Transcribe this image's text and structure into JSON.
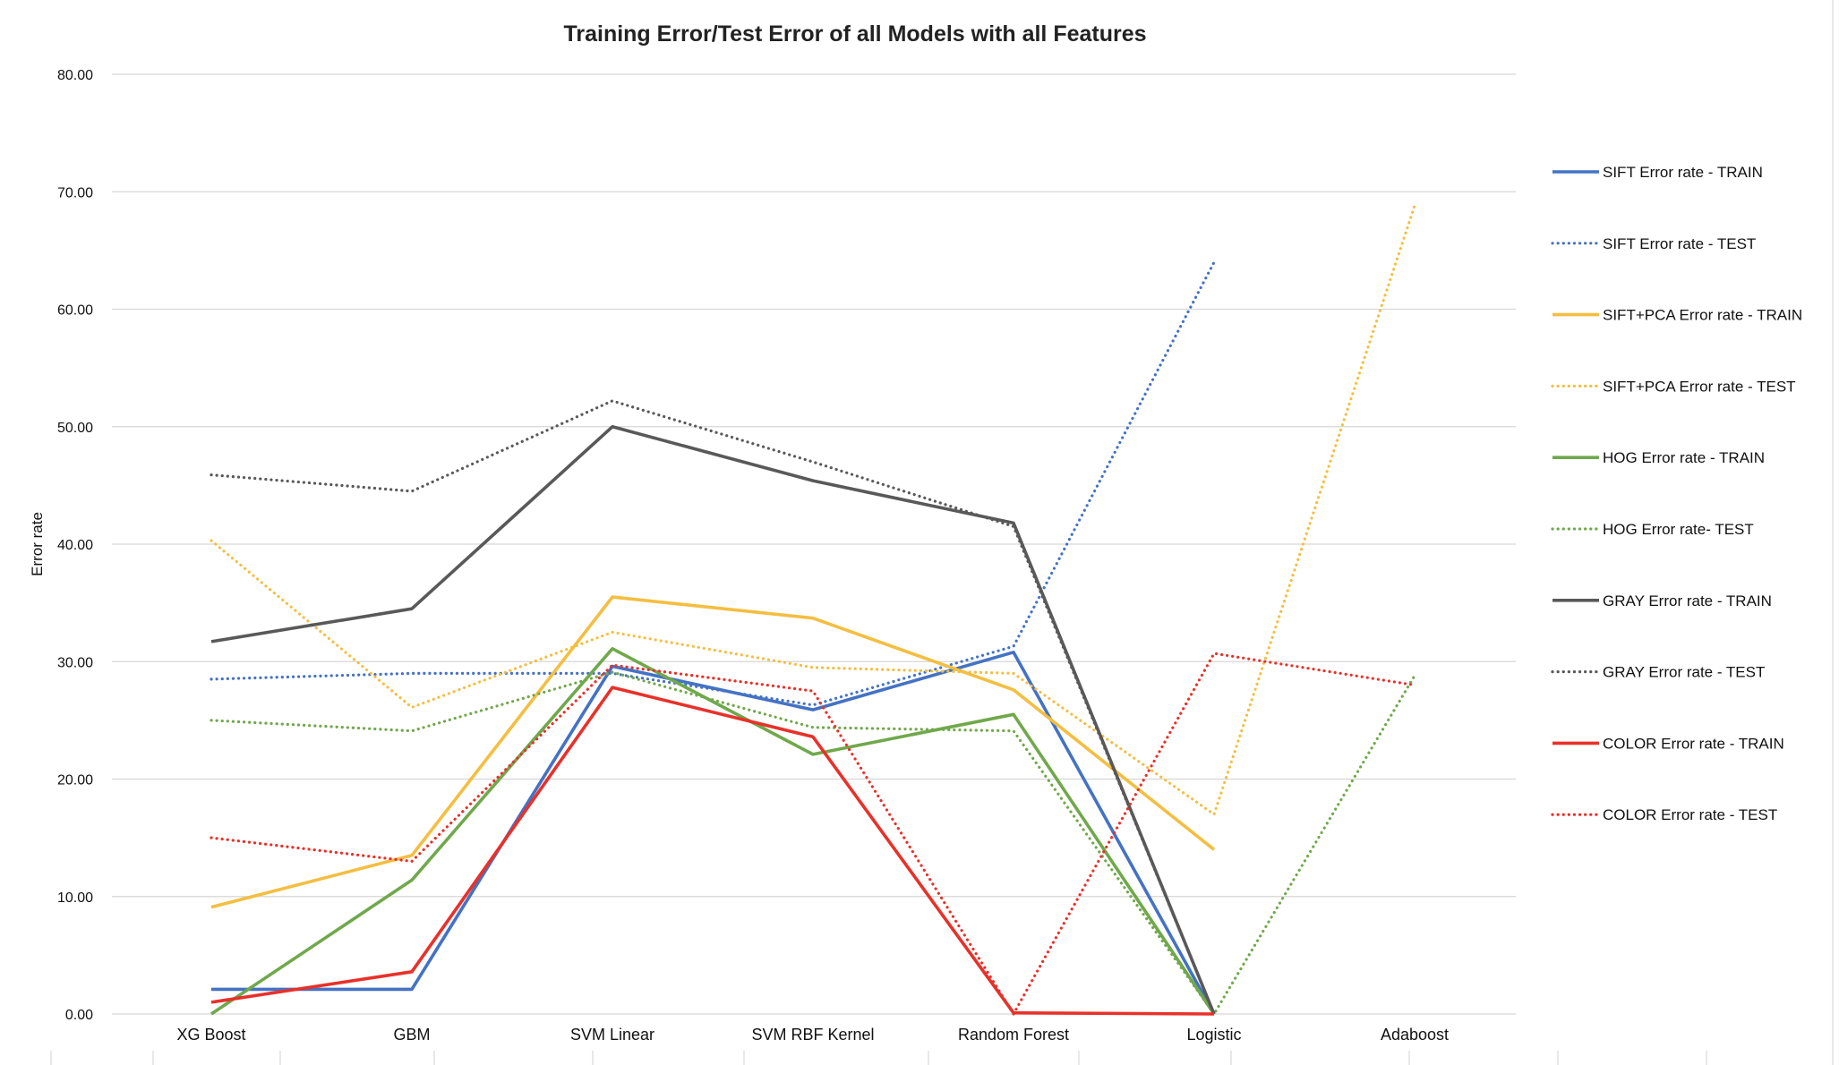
{
  "chart_data": {
    "type": "line",
    "title": "Training Error/Test Error of all Models with all Features",
    "xlabel": "",
    "ylabel": "Error rate",
    "ylim": [
      0,
      80
    ],
    "y_ticks": [
      "0.00",
      "10.00",
      "20.00",
      "30.00",
      "40.00",
      "50.00",
      "60.00",
      "70.00",
      "80.00"
    ],
    "categories": [
      "XG Boost",
      "GBM",
      "SVM Linear",
      "SVM RBF Kernel",
      "Random Forest",
      "Logistic",
      "Adaboost"
    ],
    "grid": true,
    "legend_position": "right",
    "series": [
      {
        "name": "SIFT Error rate - TRAIN",
        "color": "#4472C4",
        "style": "solid",
        "values": [
          2.1,
          2.1,
          29.6,
          25.9,
          30.8,
          0.0,
          null
        ]
      },
      {
        "name": "SIFT Error rate - TEST",
        "color": "#4472C4",
        "style": "dotted",
        "values": [
          28.5,
          29.0,
          29.0,
          26.3,
          31.3,
          64.0,
          null
        ]
      },
      {
        "name": "SIFT+PCA Error rate - TRAIN",
        "color": "#F4BE41",
        "style": "solid",
        "values": [
          9.1,
          13.5,
          35.5,
          33.7,
          27.6,
          14.0,
          null
        ]
      },
      {
        "name": "SIFT+PCA Error rate - TEST",
        "color": "#F4BE41",
        "style": "dotted",
        "values": [
          40.3,
          26.1,
          32.5,
          29.5,
          29.0,
          17.0,
          68.8
        ]
      },
      {
        "name": "HOG Error rate - TRAIN",
        "color": "#70A84B",
        "style": "solid",
        "values": [
          0.0,
          11.4,
          31.1,
          22.1,
          25.5,
          0.0,
          null
        ]
      },
      {
        "name": "HOG Error rate- TEST",
        "color": "#70A84B",
        "style": "dotted",
        "values": [
          25.0,
          24.1,
          29.1,
          24.4,
          24.1,
          0.0,
          28.8
        ]
      },
      {
        "name": "GRAY Error rate - TRAIN",
        "color": "#595959",
        "style": "solid",
        "values": [
          31.7,
          34.5,
          50.0,
          45.4,
          41.8,
          0.0,
          null
        ]
      },
      {
        "name": "GRAY Error rate - TEST",
        "color": "#595959",
        "style": "dotted",
        "values": [
          45.9,
          44.5,
          52.2,
          47.0,
          41.5,
          0.0,
          null
        ]
      },
      {
        "name": "COLOR Error rate - TRAIN",
        "color": "#E8312A",
        "style": "solid",
        "values": [
          1.0,
          3.6,
          27.8,
          23.6,
          0.1,
          0.0,
          null
        ]
      },
      {
        "name": "COLOR Error rate - TEST",
        "color": "#E8312A",
        "style": "dotted",
        "values": [
          15.0,
          13.0,
          29.7,
          27.5,
          0.0,
          30.7,
          28.0
        ]
      }
    ]
  }
}
